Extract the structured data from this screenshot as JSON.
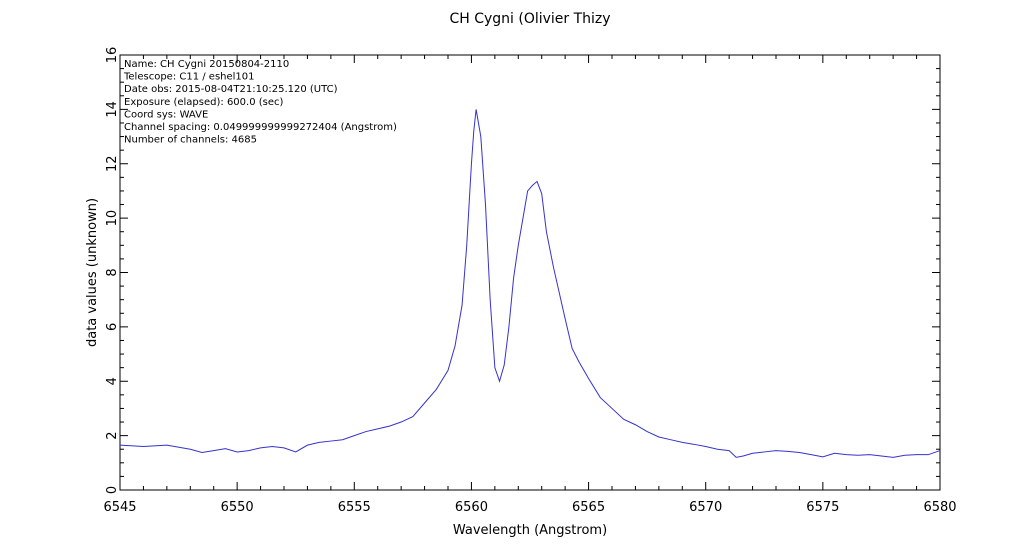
{
  "chart_data": {
    "type": "line",
    "title": "CH Cygni (Olivier Thizy",
    "xlabel": "Wavelength (Angstrom)",
    "ylabel": "data values (unknown)",
    "xlim": [
      6545,
      6580
    ],
    "ylim": [
      0,
      16
    ],
    "xticks": [
      "6545",
      "6550",
      "6555",
      "6560",
      "6565",
      "6570",
      "6575",
      "6580"
    ],
    "yticks": [
      "0",
      "2",
      "4",
      "6",
      "8",
      "10",
      "12",
      "14",
      "16"
    ],
    "grid": false,
    "info_lines": [
      "Name: CH Cygni 20150804-2110",
      "Telescope: C11 / eshel101",
      "Date obs: 2015-08-04T21:10:25.120 (UTC)",
      "Exposure (elapsed): 600.0 (sec)",
      "Coord sys: WAVE",
      "Channel spacing: 0.049999999999272404 (Angstrom)",
      "Number of channels: 4685"
    ],
    "series": [
      {
        "color": "#3333cc",
        "x": [
          6545.0,
          6546.0,
          6547.0,
          6548.0,
          6548.5,
          6549.0,
          6549.5,
          6550.0,
          6550.5,
          6551.0,
          6551.5,
          6552.0,
          6552.5,
          6553.0,
          6553.5,
          6554.0,
          6554.5,
          6555.0,
          6555.5,
          6556.0,
          6556.5,
          6557.0,
          6557.5,
          6558.0,
          6558.5,
          6559.0,
          6559.3,
          6559.6,
          6559.8,
          6560.0,
          6560.1,
          6560.2,
          6560.4,
          6560.6,
          6560.8,
          6561.0,
          6561.2,
          6561.4,
          6561.6,
          6561.8,
          6562.0,
          6562.2,
          6562.4,
          6562.6,
          6562.8,
          6563.0,
          6563.2,
          6563.5,
          6564.0,
          6564.3,
          6564.6,
          6565.0,
          6565.5,
          6566.0,
          6566.5,
          6567.0,
          6567.5,
          6568.0,
          6568.5,
          6569.0,
          6569.5,
          6570.0,
          6570.5,
          6571.0,
          6571.3,
          6571.6,
          6572.0,
          6572.5,
          6573.0,
          6573.5,
          6574.0,
          6574.5,
          6575.0,
          6575.5,
          6576.0,
          6576.5,
          6577.0,
          6577.5,
          6578.0,
          6578.5,
          6579.0,
          6579.5,
          6580.0
        ],
        "y": [
          1.65,
          1.6,
          1.65,
          1.5,
          1.38,
          1.45,
          1.52,
          1.4,
          1.45,
          1.55,
          1.6,
          1.55,
          1.4,
          1.65,
          1.75,
          1.8,
          1.85,
          2.0,
          2.15,
          2.25,
          2.35,
          2.5,
          2.7,
          3.2,
          3.7,
          4.4,
          5.3,
          6.8,
          9.0,
          12.0,
          13.2,
          14.0,
          13.0,
          10.5,
          7.0,
          4.5,
          4.0,
          4.6,
          6.0,
          7.8,
          9.0,
          10.0,
          11.0,
          11.2,
          11.35,
          10.9,
          9.5,
          8.2,
          6.3,
          5.2,
          4.7,
          4.1,
          3.4,
          3.0,
          2.6,
          2.4,
          2.15,
          1.95,
          1.85,
          1.75,
          1.68,
          1.6,
          1.5,
          1.45,
          1.2,
          1.25,
          1.35,
          1.4,
          1.45,
          1.42,
          1.38,
          1.3,
          1.22,
          1.35,
          1.3,
          1.28,
          1.3,
          1.25,
          1.2,
          1.28,
          1.3,
          1.3,
          1.45
        ]
      }
    ]
  }
}
